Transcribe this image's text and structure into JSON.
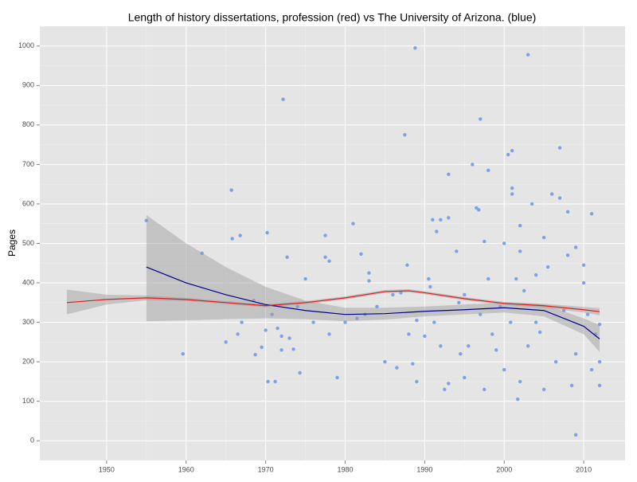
{
  "chart_data": {
    "type": "scatter",
    "title": "Length of history dissertations, profession (red) vs The University of Arizona. (blue)",
    "ylabel": "Pages",
    "xlim": [
      1941.6,
      2015.2
    ],
    "ylim": [
      -50,
      1050
    ],
    "xticks": [
      1950,
      1960,
      1970,
      1980,
      1990,
      2000,
      2010
    ],
    "yticks": [
      0,
      100,
      200,
      300,
      400,
      500,
      600,
      700,
      800,
      900,
      1000
    ],
    "grid": true,
    "series": [
      {
        "color": "#7ba2e6",
        "x": [
          1955,
          1959.6,
          1962,
          1965,
          1965.7,
          1965.8,
          1966.5,
          1966.8,
          1967,
          1968.5,
          1968.7,
          1969.5,
          1970,
          1970.2,
          1970.3,
          1970.8,
          1971.2,
          1971.5,
          1972,
          1972,
          1972.2,
          1972.7,
          1973,
          1973.5,
          1974,
          1974.3,
          1975,
          1976,
          1977.5,
          1977.5,
          1978,
          1978,
          1979,
          1980,
          1981,
          1981.5,
          1982,
          1982.5,
          1983,
          1983,
          1984,
          1985,
          1986,
          1986.5,
          1987,
          1987.5,
          1987.8,
          1988,
          1988.5,
          1988.8,
          1989,
          1989,
          1990,
          1990.5,
          1990.7,
          1991,
          1991.2,
          1991.5,
          1992,
          1992,
          1992.5,
          1993,
          1993,
          1993,
          1994,
          1994.3,
          1994.5,
          1995,
          1995,
          1995.5,
          1996,
          1996.5,
          1996.8,
          1997,
          1997,
          1997.5,
          1997.5,
          1998,
          1998,
          1998.5,
          1999,
          1999.5,
          2000,
          2000,
          2000.5,
          2000.8,
          2001,
          2001,
          2001,
          2001.5,
          2001.7,
          2002,
          2002,
          2002,
          2002.5,
          2003,
          2003,
          2003.5,
          2004,
          2004,
          2004.5,
          2005,
          2005,
          2005.5,
          2006,
          2006.5,
          2007,
          2007,
          2007.5,
          2008,
          2008,
          2008.5,
          2009,
          2009,
          2009,
          2010,
          2010,
          2010.5,
          2011,
          2011,
          2011.5,
          2012,
          2012,
          2012
        ],
        "values": [
          558,
          220,
          475,
          250,
          635,
          512,
          270,
          520,
          300,
          355,
          218,
          237,
          280,
          527,
          150,
          320,
          150,
          285,
          265,
          230,
          865,
          465,
          260,
          232,
          340,
          172,
          410,
          300,
          520,
          465,
          455,
          270,
          160,
          300,
          550,
          310,
          473,
          320,
          405,
          425,
          340,
          200,
          370,
          185,
          375,
          775,
          445,
          270,
          195,
          995,
          150,
          305,
          265,
          410,
          390,
          560,
          300,
          530,
          560,
          240,
          130,
          675,
          565,
          145,
          480,
          350,
          220,
          370,
          160,
          240,
          700,
          590,
          585,
          815,
          320,
          505,
          130,
          685,
          410,
          270,
          230,
          340,
          500,
          180,
          725,
          300,
          735,
          640,
          625,
          410,
          105,
          545,
          480,
          150,
          380,
          978,
          240,
          600,
          420,
          300,
          275,
          515,
          130,
          440,
          625,
          200,
          615,
          742,
          330,
          580,
          470,
          140,
          15,
          490,
          220,
          445,
          400,
          320,
          575,
          180,
          270,
          140,
          200,
          295
        ]
      }
    ],
    "fits": [
      {
        "color": "#00008b",
        "x": [
          1955,
          1960,
          1965,
          1970,
          1975,
          1980,
          1985,
          1990,
          1995,
          2000,
          2005,
          2010,
          2012
        ],
        "values": [
          440,
          400,
          370,
          345,
          330,
          320,
          322,
          328,
          332,
          337,
          330,
          290,
          258
        ],
        "lower": [
          303,
          305,
          308,
          310,
          308,
          303,
          307,
          315,
          320,
          325,
          315,
          270,
          225
        ],
        "upper": [
          572,
          500,
          440,
          390,
          355,
          337,
          337,
          340,
          345,
          350,
          345,
          310,
          293
        ]
      },
      {
        "color": "#e41a1c",
        "x": [
          1945,
          1950,
          1955,
          1960,
          1965,
          1970,
          1975,
          1980,
          1985,
          1988,
          1990,
          1995,
          2000,
          2005,
          2010,
          2012
        ],
        "values": [
          350,
          358,
          362,
          358,
          350,
          342,
          350,
          362,
          378,
          380,
          375,
          360,
          348,
          342,
          332,
          327
        ],
        "lower": [
          320,
          345,
          356,
          354,
          346,
          338,
          346,
          358,
          374,
          376,
          371,
          356,
          344,
          337,
          325,
          318
        ],
        "upper": [
          383,
          370,
          368,
          362,
          354,
          346,
          354,
          366,
          382,
          384,
          379,
          364,
          352,
          347,
          339,
          336
        ]
      }
    ],
    "band_color": "#999999",
    "band_opacity": 0.45
  }
}
